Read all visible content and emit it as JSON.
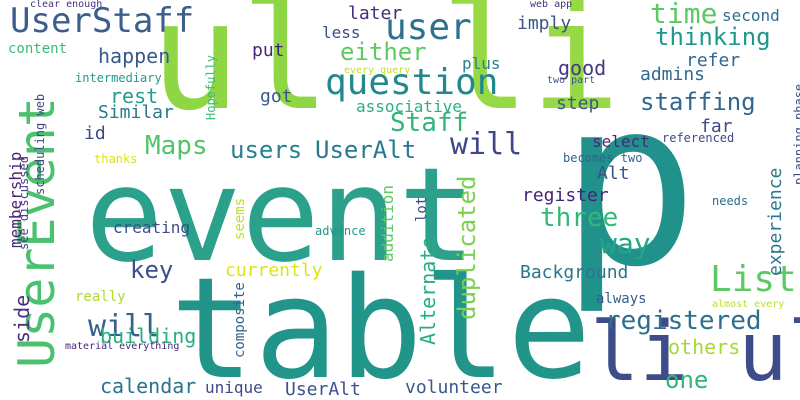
{
  "words": [
    {
      "text": "event",
      "color": "#2ba08b"
    },
    {
      "text": "table",
      "color": "#22958a"
    },
    {
      "text": "ul",
      "color": "#8fd644"
    },
    {
      "text": "li",
      "color": "#96d944"
    },
    {
      "text": "p",
      "color": "#21918c"
    },
    {
      "text": "li ul",
      "color": "#3e4c8a"
    },
    {
      "text": "UserEvent",
      "color": "#4ac26d"
    },
    {
      "text": "UserStaff",
      "color": "#3b5e8c"
    },
    {
      "text": "user",
      "color": "#2d718e"
    },
    {
      "text": "question",
      "color": "#23888e"
    },
    {
      "text": "either",
      "color": "#5ec962"
    },
    {
      "text": "List",
      "color": "#5ec962"
    },
    {
      "text": "registered",
      "color": "#2e6e8e"
    },
    {
      "text": "staffing",
      "color": "#31678e"
    },
    {
      "text": "will",
      "color": "#34618d"
    },
    {
      "text": "Staff",
      "color": "#31b57b"
    },
    {
      "text": "Maps",
      "color": "#50c46a"
    },
    {
      "text": "users",
      "color": "#26828e"
    },
    {
      "text": "UserAlt",
      "color": "#2a788e"
    },
    {
      "text": "will",
      "color": "#3f4788"
    },
    {
      "text": "thinking",
      "color": "#1f988b"
    },
    {
      "text": "time",
      "color": "#5cc863"
    },
    {
      "text": "three",
      "color": "#35b779"
    },
    {
      "text": "way",
      "color": "#22a785"
    },
    {
      "text": "duplicated",
      "color": "#7ad151"
    },
    {
      "text": "Alternate",
      "color": "#26ad81"
    },
    {
      "text": "key",
      "color": "#3c4f8a"
    },
    {
      "text": "side",
      "color": "#46307e"
    },
    {
      "text": "Background",
      "color": "#2a768e"
    },
    {
      "text": "currently",
      "color": "#dde318"
    },
    {
      "text": "building",
      "color": "#29af7f"
    },
    {
      "text": "calendar",
      "color": "#2c718e"
    },
    {
      "text": "UserAlt",
      "color": "#3b528b"
    },
    {
      "text": "volunteer",
      "color": "#38588c"
    },
    {
      "text": "unique",
      "color": "#3e4989"
    },
    {
      "text": "one",
      "color": "#31b57b"
    },
    {
      "text": "others",
      "color": "#a2da37"
    },
    {
      "text": "register",
      "color": "#482374"
    },
    {
      "text": "experience",
      "color": "#2a778e"
    },
    {
      "text": "membership",
      "color": "#482475"
    },
    {
      "text": "happen",
      "color": "#38598c"
    },
    {
      "text": "Similar",
      "color": "#297a8e"
    },
    {
      "text": "rest",
      "color": "#1f9e89"
    },
    {
      "text": "id",
      "color": "#3e4989"
    },
    {
      "text": "put",
      "color": "#482677"
    },
    {
      "text": "got",
      "color": "#38598c"
    },
    {
      "text": "good",
      "color": "#443a83"
    },
    {
      "text": "admins",
      "color": "#31688e"
    },
    {
      "text": "step",
      "color": "#38588c"
    },
    {
      "text": "far",
      "color": "#3e4a89"
    },
    {
      "text": "select",
      "color": "#482878"
    },
    {
      "text": "Alt",
      "color": "#3b518b"
    },
    {
      "text": "refer",
      "color": "#31688e"
    },
    {
      "text": "imply",
      "color": "#39558c"
    },
    {
      "text": "later",
      "color": "#472d7b"
    },
    {
      "text": "less",
      "color": "#3e4c8a"
    },
    {
      "text": "plus",
      "color": "#25838e"
    },
    {
      "text": "second",
      "color": "#2e6f8e"
    },
    {
      "text": "content",
      "color": "#38b977"
    },
    {
      "text": "associative",
      "color": "#2ab07f"
    },
    {
      "text": "seems",
      "color": "#bddf26"
    },
    {
      "text": "lot",
      "color": "#3e4a89"
    },
    {
      "text": "addition",
      "color": "#5ec962"
    },
    {
      "text": "creating",
      "color": "#3d4e8a"
    },
    {
      "text": "advance",
      "color": "#1f968b"
    },
    {
      "text": "composite",
      "color": "#33628d"
    },
    {
      "text": "really",
      "color": "#addc30"
    },
    {
      "text": "always",
      "color": "#355e8d"
    },
    {
      "text": "needs",
      "color": "#2f6b8e"
    },
    {
      "text": "intermediary",
      "color": "#1f9a8a"
    },
    {
      "text": "web app",
      "color": "#46337f"
    },
    {
      "text": "two part",
      "color": "#3a548c"
    },
    {
      "text": "every query",
      "color": "#c0df25"
    },
    {
      "text": "clear enough",
      "color": "#46327e"
    },
    {
      "text": "referenced",
      "color": "#3e4a89"
    },
    {
      "text": "becomes two",
      "color": "#34618d"
    },
    {
      "text": "thanks",
      "color": "#dae319"
    },
    {
      "text": "Hopefully",
      "color": "#3bbb75"
    },
    {
      "text": "scheduling web",
      "color": "#404688"
    },
    {
      "text": "see discussed",
      "color": "#433e85"
    },
    {
      "text": "planning phase",
      "color": "#3b518b"
    },
    {
      "text": "material everything",
      "color": "#482576"
    },
    {
      "text": "almost every",
      "color": "#b8de29"
    }
  ]
}
